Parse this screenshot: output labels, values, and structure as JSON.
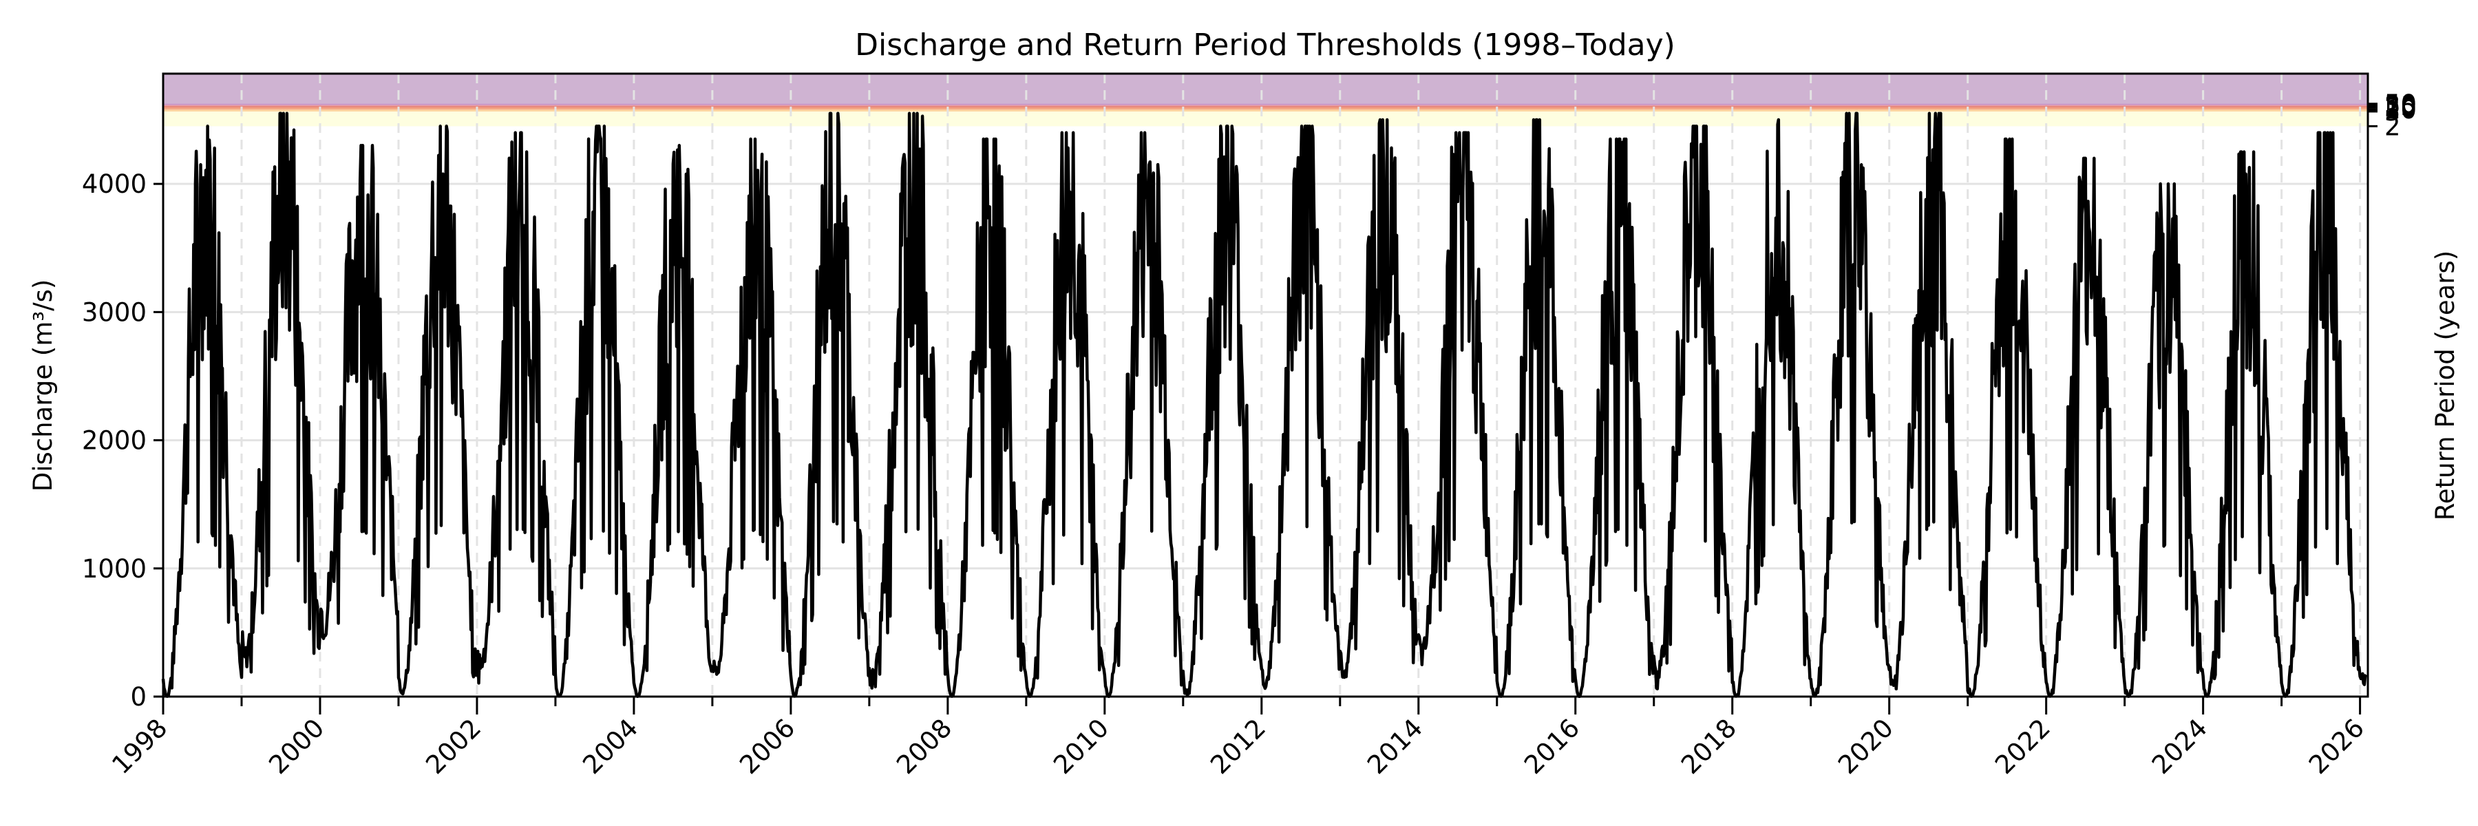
{
  "chart_data": {
    "type": "line",
    "title": "Discharge and Return Period Thresholds (1998–Today)",
    "xlabel": "",
    "ylabel": "Discharge (m³/s)",
    "ylabel_right": "Return Period (years)",
    "xlim": [
      1998,
      2026.1
    ],
    "ylim": [
      0,
      4860
    ],
    "grid": true,
    "x_ticks": [
      "1998",
      "2000",
      "2002",
      "2004",
      "2006",
      "2008",
      "2010",
      "2012",
      "2014",
      "2016",
      "2018",
      "2020",
      "2022",
      "2024",
      "2026"
    ],
    "y_ticks": [
      0,
      1000,
      2000,
      3000,
      4000
    ],
    "return_period_thresholds": [
      {
        "years": "2",
        "discharge": 4450,
        "color": "#fefee0"
      },
      {
        "years": "5",
        "discharge": 4565,
        "color": "#fdd49e"
      },
      {
        "years": "10",
        "discharge": 4580,
        "color": "#f4a582"
      },
      {
        "years": "20",
        "discharge": 4595,
        "color": "#e8816e"
      },
      {
        "years": "25",
        "discharge": 4605,
        "color": "#e7999f"
      },
      {
        "years": "30",
        "discharge": 4615,
        "color": "#c994c7"
      },
      {
        "years": "50",
        "discharge": 4625,
        "color": "#a870b0"
      }
    ],
    "series": [
      {
        "name": "Discharge",
        "color": "#000000",
        "description": "Daily discharge with strong annual seasonality; peaks ~4000–4550 m³/s mid-year, troughs near 0–500 m³/s",
        "annual_peaks": [
          {
            "year": 1998,
            "peak": 4450,
            "low": 0
          },
          {
            "year": 1999,
            "peak": 4550,
            "low": 350
          },
          {
            "year": 2000,
            "peak": 4300,
            "low": 700
          },
          {
            "year": 2001,
            "peak": 4450,
            "low": 30
          },
          {
            "year": 2002,
            "peak": 4400,
            "low": 300
          },
          {
            "year": 2003,
            "peak": 4450,
            "low": 0
          },
          {
            "year": 2004,
            "peak": 4300,
            "low": 0
          },
          {
            "year": 2005,
            "peak": 4350,
            "low": 200
          },
          {
            "year": 2006,
            "peak": 4550,
            "low": 0
          },
          {
            "year": 2007,
            "peak": 4550,
            "low": 200
          },
          {
            "year": 2008,
            "peak": 4350,
            "low": 0
          },
          {
            "year": 2009,
            "peak": 4400,
            "low": 0
          },
          {
            "year": 2010,
            "peak": 4400,
            "low": 0
          },
          {
            "year": 2011,
            "peak": 4450,
            "low": 30
          },
          {
            "year": 2012,
            "peak": 4450,
            "low": 100
          },
          {
            "year": 2013,
            "peak": 4500,
            "low": 200
          },
          {
            "year": 2014,
            "peak": 4400,
            "low": 350
          },
          {
            "year": 2015,
            "peak": 4500,
            "low": 0
          },
          {
            "year": 2016,
            "peak": 4350,
            "low": 0
          },
          {
            "year": 2017,
            "peak": 4450,
            "low": 200
          },
          {
            "year": 2018,
            "peak": 4500,
            "low": 0
          },
          {
            "year": 2019,
            "peak": 4550,
            "low": 0
          },
          {
            "year": 2020,
            "peak": 4550,
            "low": 100
          },
          {
            "year": 2021,
            "peak": 4350,
            "low": 0
          },
          {
            "year": 2022,
            "peak": 4200,
            "low": 0
          },
          {
            "year": 2023,
            "peak": 4000,
            "low": 0
          },
          {
            "year": 2024,
            "peak": 4250,
            "low": 0
          },
          {
            "year": 2025,
            "peak": 4400,
            "low": 0
          },
          {
            "year": 2026,
            "peak": 2800,
            "low": 150
          }
        ]
      }
    ]
  }
}
